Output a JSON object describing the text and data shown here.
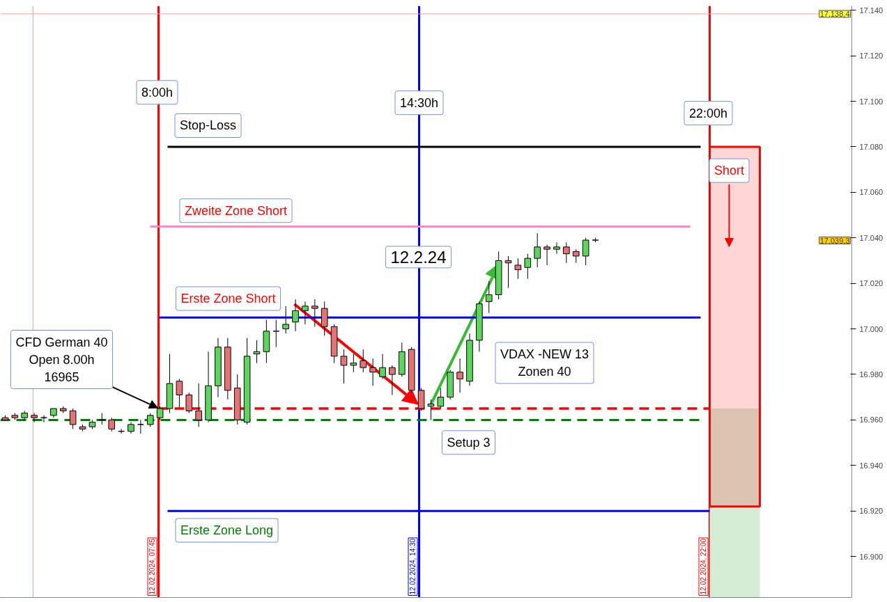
{
  "chart_data": {
    "type": "candlestick",
    "categories": [
      null,
      null,
      null,
      null,
      null,
      null,
      null,
      null,
      null,
      null,
      null,
      null,
      null,
      null,
      null,
      null,
      null,
      null,
      null,
      null,
      null,
      null,
      null,
      null,
      null,
      null,
      null,
      null,
      null,
      null,
      null,
      null,
      null,
      null,
      null,
      null,
      null,
      null,
      null,
      null,
      null,
      null,
      null,
      null,
      null,
      null,
      null,
      null,
      null,
      null,
      null,
      null,
      null,
      null,
      null,
      null,
      null,
      null,
      null,
      null,
      null,
      null,
      null,
      null,
      null,
      null,
      null,
      null,
      null,
      null,
      null,
      null,
      null,
      null,
      null,
      null,
      null,
      null,
      null,
      null,
      null,
      null,
      null,
      null,
      null,
      null,
      null,
      null
    ],
    "ohlc": [
      [
        16961,
        16962,
        16960,
        16960
      ],
      [
        16962,
        16963,
        16960,
        16961
      ],
      [
        16961,
        16964,
        16960,
        16963
      ],
      [
        16962,
        16963,
        16959,
        16961
      ],
      [
        16961,
        16962,
        16959,
        16961
      ],
      [
        16962,
        16965,
        16961,
        16965
      ],
      [
        16965,
        16966,
        16963,
        16964
      ],
      [
        16964,
        16965,
        16956,
        16958
      ],
      [
        16957,
        16958,
        16955,
        16956
      ],
      [
        16957,
        16960,
        16956,
        16959
      ],
      [
        16960,
        16963,
        16958,
        16960
      ],
      [
        16960,
        16961,
        16955,
        16956
      ],
      [
        16955,
        16956,
        16954,
        16955
      ],
      [
        16955,
        16959,
        16954,
        16958
      ],
      [
        16958,
        16960,
        16954,
        16958
      ],
      [
        16958,
        16963,
        16957,
        16962
      ],
      [
        16961,
        16966,
        16960,
        16965
      ],
      [
        16965,
        16989,
        16963,
        16976
      ],
      [
        16977,
        16978,
        16965,
        16971
      ],
      [
        16971,
        16972,
        16963,
        16964
      ],
      [
        16964,
        16976,
        16957,
        16960
      ],
      [
        16960,
        16990,
        16959,
        16975
      ],
      [
        16975,
        16996,
        16970,
        16992
      ],
      [
        16992,
        16996,
        16969,
        16973
      ],
      [
        16974,
        16980,
        16958,
        16960
      ],
      [
        16959,
        16996,
        16958,
        16988
      ],
      [
        16989,
        16995,
        16985,
        16990
      ],
      [
        16990,
        17004,
        16985,
        16999
      ],
      [
        16999,
        17004,
        16992,
        16999
      ],
      [
        17000,
        17010,
        16998,
        17002
      ],
      [
        17003,
        17013,
        16999,
        17008
      ],
      [
        17008,
        17012,
        17002,
        17010
      ],
      [
        17010,
        17013,
        17001,
        17009
      ],
      [
        17009,
        17012,
        16997,
        17001
      ],
      [
        17001,
        17002,
        16985,
        16988
      ],
      [
        16988,
        16991,
        16976,
        16984
      ],
      [
        16984,
        16989,
        16981,
        16985
      ],
      [
        16986,
        16991,
        16981,
        16983
      ],
      [
        16983,
        16987,
        16975,
        16981
      ],
      [
        16979,
        16989,
        16978,
        16983
      ],
      [
        16983,
        16984,
        16971,
        16980
      ],
      [
        16980,
        16994,
        16979,
        16990
      ],
      [
        16991,
        16992,
        16972,
        16973
      ],
      [
        16973,
        16974,
        16964,
        16965
      ],
      [
        16966,
        16969,
        16960,
        16967
      ],
      [
        16966,
        16974,
        16965,
        16970
      ],
      [
        16970,
        16982,
        16969,
        16981
      ],
      [
        16981,
        16987,
        16972,
        16978
      ],
      [
        16977,
        16998,
        16975,
        16995
      ],
      [
        16995,
        17012,
        16990,
        17011
      ],
      [
        17012,
        17021,
        17007,
        17015
      ],
      [
        17015,
        17034,
        17013,
        17030
      ],
      [
        17030,
        17032,
        17018,
        17029
      ],
      [
        17028,
        17031,
        17022,
        17026
      ],
      [
        17027,
        17033,
        17022,
        17031
      ],
      [
        17031,
        17042,
        17027,
        17036
      ],
      [
        17036,
        17037,
        17028,
        17035
      ],
      [
        17035,
        17038,
        17033,
        17036
      ],
      [
        17036,
        17038,
        17029,
        17033
      ],
      [
        17034,
        17035,
        17029,
        17032
      ],
      [
        17032,
        17040,
        17028,
        17039
      ],
      [
        17039,
        17040,
        17038,
        17039
      ],
      null,
      null,
      null,
      null,
      null,
      null,
      null,
      null,
      null,
      null,
      null,
      null,
      null,
      null,
      null,
      null,
      null,
      null,
      null,
      null,
      null,
      null,
      null,
      null,
      null,
      null
    ],
    "ylim": [
      16882,
      17141.9
    ],
    "yticks": [
      {
        "value": 16900,
        "label": "16.900"
      },
      {
        "value": 16920,
        "label": "16.920"
      },
      {
        "value": 16940,
        "label": "16.940"
      },
      {
        "value": 16960,
        "label": "16.960"
      },
      {
        "value": 16980,
        "label": "16.980"
      },
      {
        "value": 17000,
        "label": "17.000"
      },
      {
        "value": 17020,
        "label": "17.020"
      },
      {
        "value": 17040,
        "label": "17.040"
      },
      {
        "value": 17060,
        "label": "17.060"
      },
      {
        "value": 17080,
        "label": "17.080"
      },
      {
        "value": 17100,
        "label": "17.100"
      },
      {
        "value": 17120,
        "label": "17.120"
      },
      {
        "value": 17140,
        "label": "17.140"
      }
    ],
    "tick_labels": "y",
    "ref_lines": [
      {
        "axis": "y",
        "value": 17080,
        "label": "Stop-Loss",
        "color": "#000000"
      },
      {
        "axis": "y",
        "value": 17045,
        "label": "Zweite Zone Short",
        "color": "#ff88c8"
      },
      {
        "axis": "y",
        "value": 17005,
        "label": "Erste Zone Short",
        "color": "#0000ff"
      },
      {
        "axis": "y",
        "value": 16920,
        "label": "Erste Zone Long",
        "color": "#0000ff"
      },
      {
        "axis": "y",
        "value": 16965,
        "color": "#ff0000",
        "line_style": "dashed"
      },
      {
        "axis": "y",
        "value": 16960,
        "color": "#008000",
        "line_style": "dashed"
      },
      {
        "axis": "y",
        "value": 17138.4,
        "label": "17.138,4",
        "color": "#ff9a9a"
      }
    ],
    "bands": [
      {
        "axis": "y",
        "from": 16965,
        "to": 17080,
        "label": "Short",
        "color": "#ffd6d6"
      },
      {
        "axis": "y",
        "from": 16922,
        "to": 16965,
        "color": "#dcc3b0"
      },
      {
        "axis": "y",
        "from": 16882,
        "to": 16922,
        "color": "#d5ecd5"
      }
    ],
    "annotations": [
      "8:00h",
      "14:30h",
      "22:00h",
      "12.2.24",
      "CFD German 40\nOpen 8.00h\n16965",
      "VDAX -NEW 13\nZonen 40",
      "Setup 3",
      "12.02.2024, 07:45",
      "12.02.2024, 14:30",
      "12.02.2024, 22:00",
      "17.039,3"
    ]
  }
}
